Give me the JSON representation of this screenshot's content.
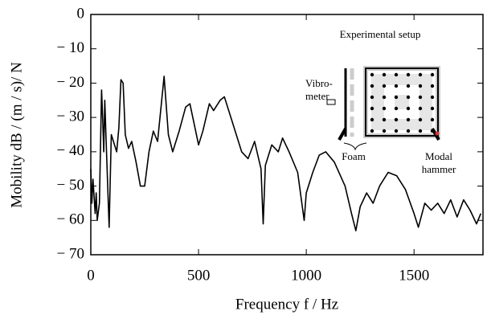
{
  "chart_data": {
    "type": "line",
    "xlabel": "Frequency  f  / Hz",
    "ylabel": "Mobility dB / (m  / s)/ N",
    "annotations": [
      "Experimental setup",
      "Vibro-",
      "meter",
      "Foam",
      "Modal",
      "hammer"
    ],
    "xlim": [
      0,
      1820
    ],
    "xticks": [
      0,
      500,
      1000,
      1500
    ],
    "ylim": [
      -70,
      0
    ],
    "yticks": [
      0,
      {
        "value": -10,
        "label": "− 10"
      },
      {
        "value": -20,
        "label": "− 20"
      },
      {
        "value": -30,
        "label": "− 30"
      },
      {
        "value": -40,
        "label": "− 40"
      },
      {
        "value": -50,
        "label": "− 50"
      },
      {
        "value": -60,
        "label": "− 60"
      },
      {
        "value": -70,
        "label": "− 70"
      }
    ],
    "series": [
      {
        "color": "#000000",
        "x": [
          0,
          5,
          10,
          20,
          25,
          30,
          40,
          50,
          55,
          60,
          65,
          70,
          85,
          95,
          110,
          120,
          130,
          140,
          150,
          160,
          175,
          190,
          210,
          230,
          250,
          270,
          290,
          310,
          340,
          360,
          380,
          410,
          440,
          460,
          480,
          500,
          520,
          550,
          570,
          600,
          620,
          650,
          700,
          730,
          760,
          790,
          800,
          810,
          840,
          870,
          890,
          920,
          960,
          990,
          1000,
          1030,
          1060,
          1090,
          1130,
          1180,
          1210,
          1230,
          1250,
          1280,
          1310,
          1340,
          1380,
          1420,
          1460,
          1500,
          1520,
          1550,
          1580,
          1610,
          1640,
          1670,
          1700,
          1730,
          1760,
          1790,
          1810
        ],
        "values": [
          -45,
          -55,
          -48,
          -58,
          -52,
          -60,
          -55,
          -22,
          -30,
          -40,
          -25,
          -35,
          -62,
          -35,
          -38,
          -40,
          -33,
          -19,
          -20,
          -35,
          -39,
          -37,
          -43,
          -50,
          -50,
          -40,
          -34,
          -37,
          -18,
          -35,
          -40,
          -34,
          -27,
          -26,
          -32,
          -38,
          -34,
          -26,
          -28,
          -25,
          -24,
          -30,
          -40,
          -42,
          -37,
          -45,
          -61,
          -44,
          -38,
          -40,
          -36,
          -40,
          -46,
          -60,
          -52,
          -46,
          -41,
          -40,
          -43,
          -50,
          -58,
          -63,
          -56,
          -52,
          -55,
          -50,
          -46,
          -47,
          -51,
          -58,
          -62,
          -55,
          -57,
          -55,
          -58,
          -54,
          -59,
          -54,
          -57,
          -61,
          -58
        ]
      }
    ]
  }
}
